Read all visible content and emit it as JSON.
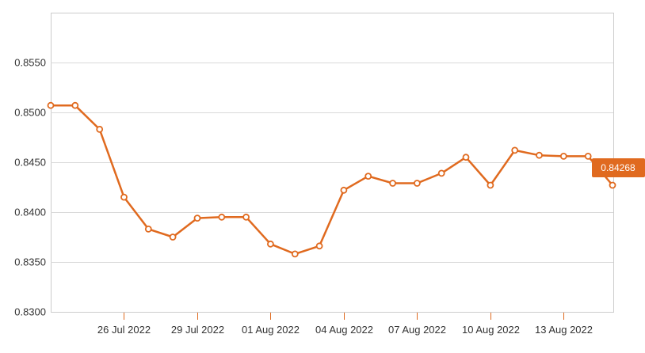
{
  "chart_data": {
    "type": "line",
    "title": "",
    "xlabel": "",
    "ylabel": "",
    "ylim": [
      0.83,
      0.86
    ],
    "yticks": [
      "0.8300",
      "0.8350",
      "0.8400",
      "0.8450",
      "0.8500",
      "0.8550"
    ],
    "xtick_labels": [
      {
        "date": "2022-07-26",
        "label": "26 Jul 2022"
      },
      {
        "date": "2022-07-29",
        "label": "29 Jul 2022"
      },
      {
        "date": "2022-08-01",
        "label": "01 Aug 2022"
      },
      {
        "date": "2022-08-04",
        "label": "04 Aug 2022"
      },
      {
        "date": "2022-08-07",
        "label": "07 Aug 2022"
      },
      {
        "date": "2022-08-10",
        "label": "10 Aug 2022"
      },
      {
        "date": "2022-08-13",
        "label": "13 Aug 2022"
      }
    ],
    "grid": true,
    "series": [
      {
        "color": "#e06a1f",
        "points": [
          {
            "x": "2022-07-23",
            "y": 0.8507
          },
          {
            "x": "2022-07-24",
            "y": 0.8507
          },
          {
            "x": "2022-07-25",
            "y": 0.8483
          },
          {
            "x": "2022-07-26",
            "y": 0.8415
          },
          {
            "x": "2022-07-27",
            "y": 0.8383
          },
          {
            "x": "2022-07-28",
            "y": 0.8375
          },
          {
            "x": "2022-07-29",
            "y": 0.8394
          },
          {
            "x": "2022-07-30",
            "y": 0.8395
          },
          {
            "x": "2022-07-31",
            "y": 0.8395
          },
          {
            "x": "2022-08-01",
            "y": 0.8368
          },
          {
            "x": "2022-08-02",
            "y": 0.8358
          },
          {
            "x": "2022-08-03",
            "y": 0.8366
          },
          {
            "x": "2022-08-04",
            "y": 0.8422
          },
          {
            "x": "2022-08-05",
            "y": 0.8436
          },
          {
            "x": "2022-08-06",
            "y": 0.8429
          },
          {
            "x": "2022-08-07",
            "y": 0.8429
          },
          {
            "x": "2022-08-08",
            "y": 0.8439
          },
          {
            "x": "2022-08-09",
            "y": 0.8455
          },
          {
            "x": "2022-08-10",
            "y": 0.8427
          },
          {
            "x": "2022-08-11",
            "y": 0.8462
          },
          {
            "x": "2022-08-12",
            "y": 0.8457
          },
          {
            "x": "2022-08-13",
            "y": 0.8456
          },
          {
            "x": "2022-08-14",
            "y": 0.8456
          },
          {
            "x": "2022-08-15",
            "y": 0.8427
          }
        ]
      }
    ],
    "last_value_label": "0.84268",
    "colors": {
      "line": "#e06a1f",
      "marker_fill": "#ffffff",
      "flag": "#e06a1f",
      "grid": "#d9d9d9",
      "frame": "#cccccc",
      "tick": "#e06a1f"
    }
  }
}
